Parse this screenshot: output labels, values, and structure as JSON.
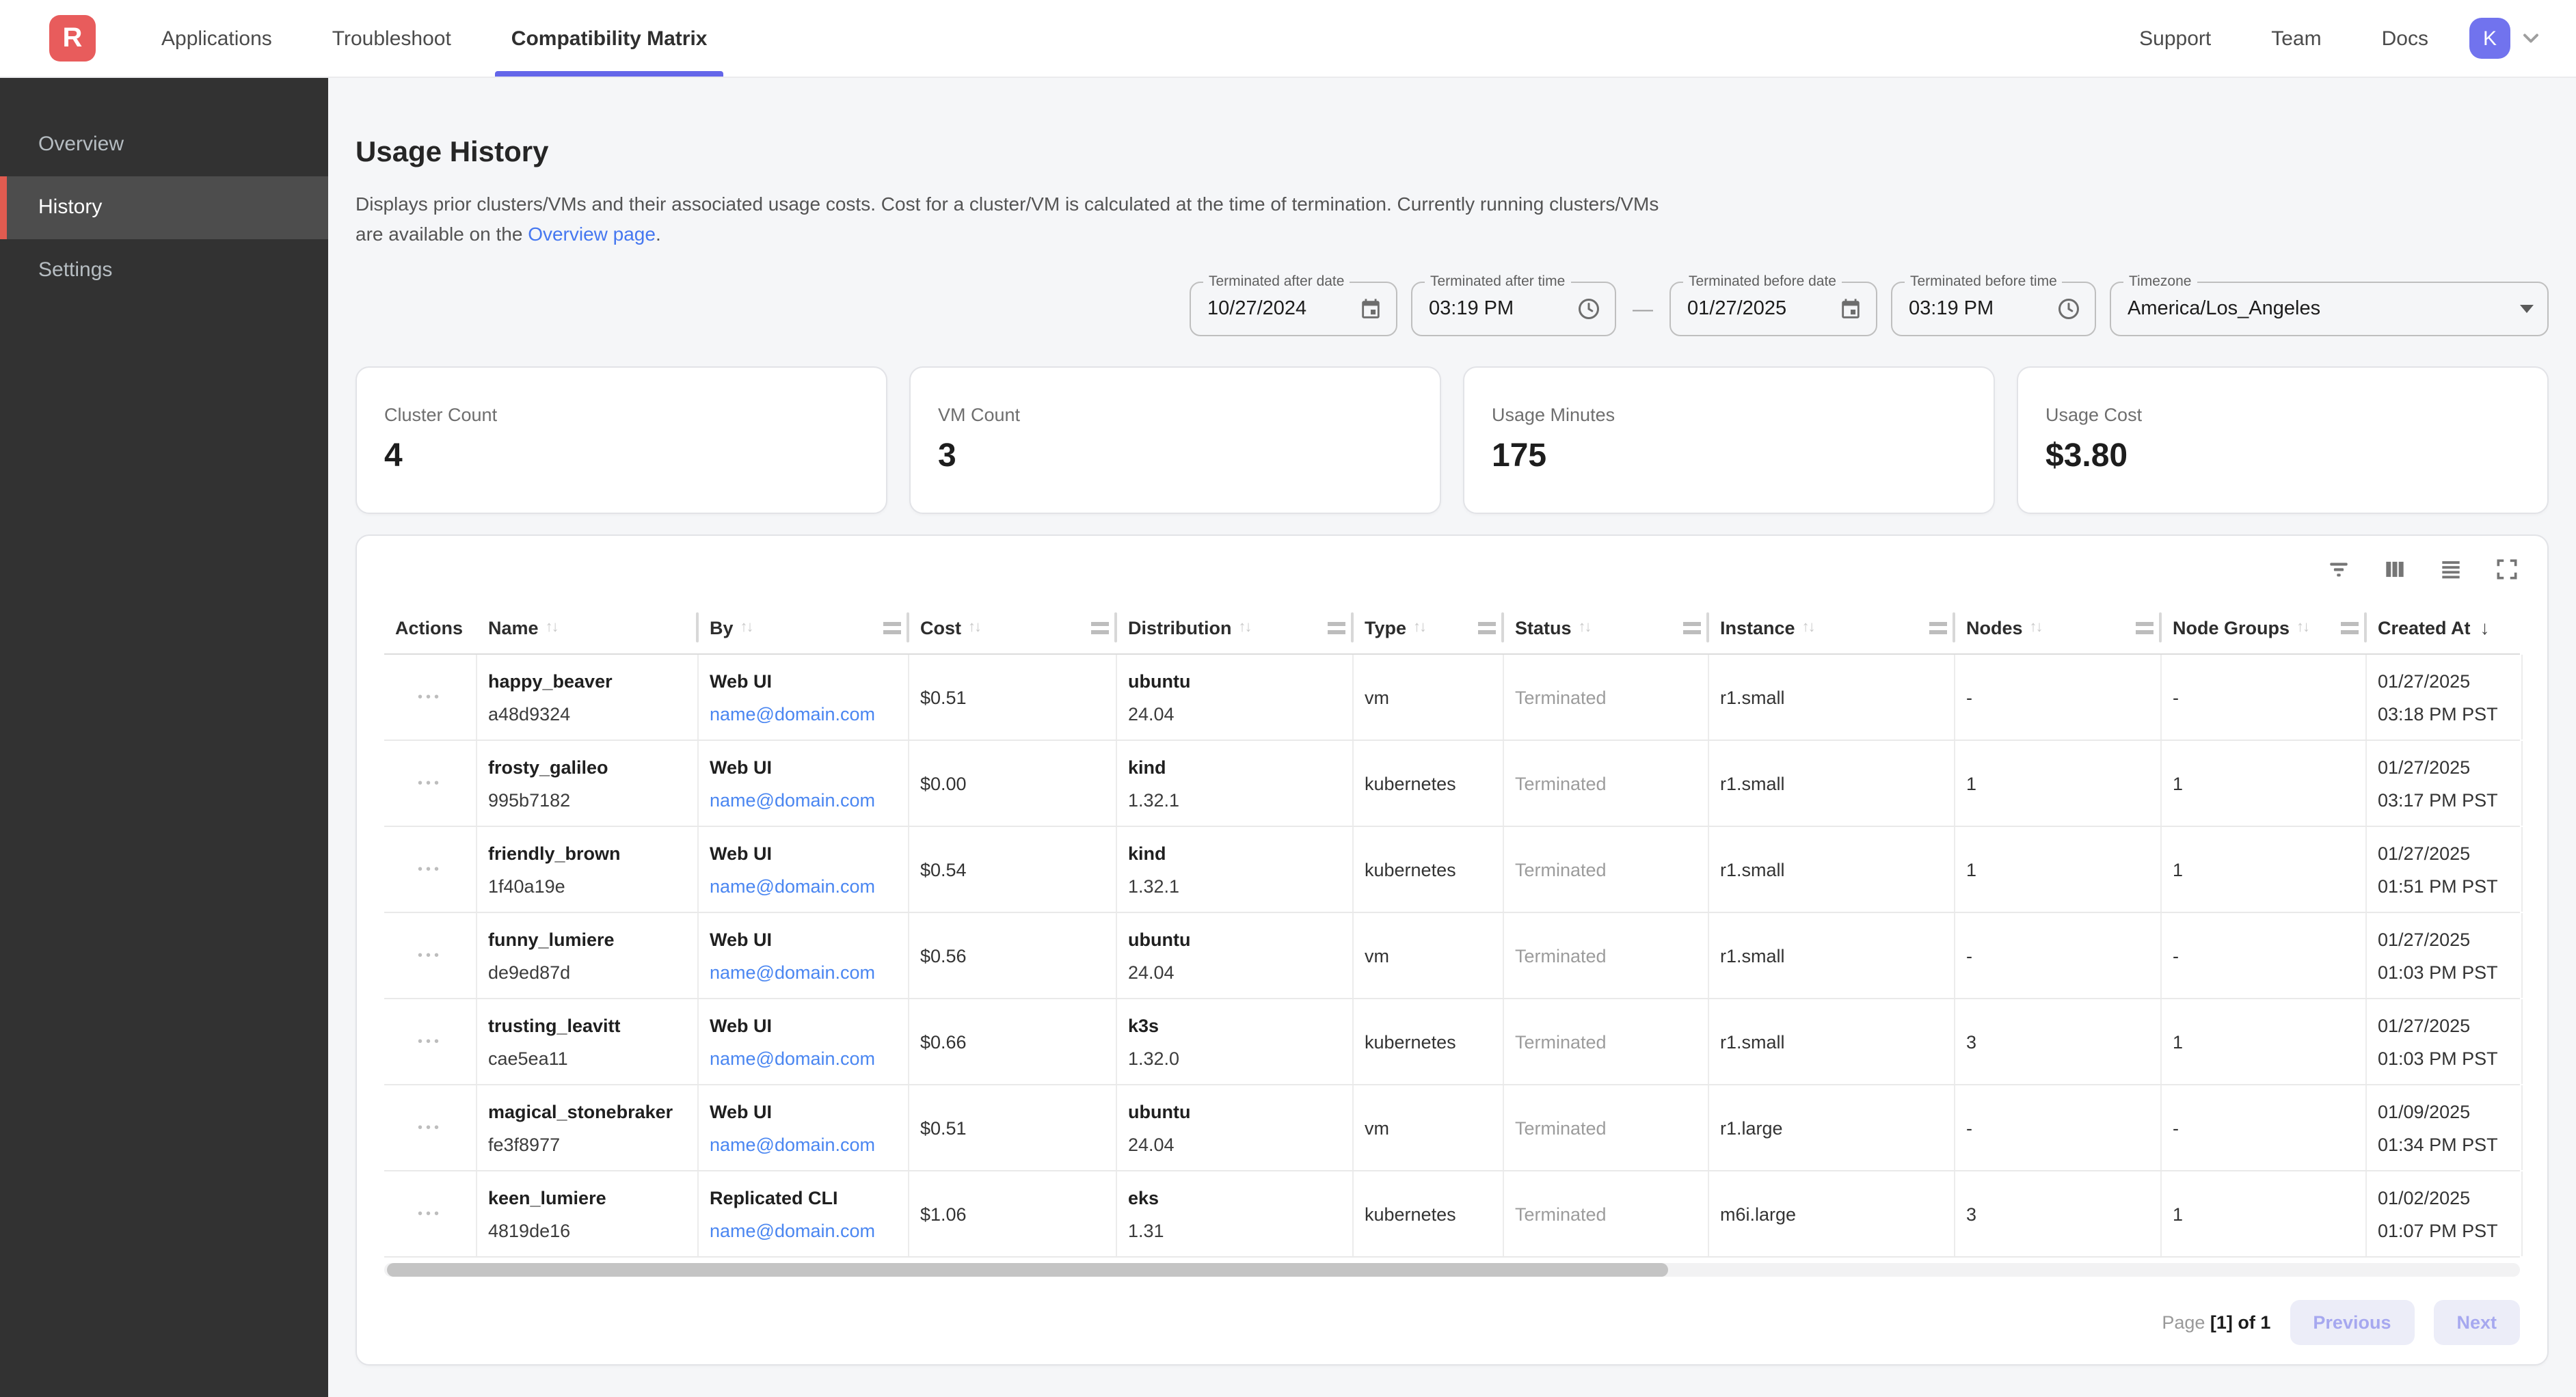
{
  "nav": {
    "logo_letter": "R",
    "tabs": [
      {
        "label": "Applications",
        "active": false
      },
      {
        "label": "Troubleshoot",
        "active": false
      },
      {
        "label": "Compatibility Matrix",
        "active": true
      }
    ],
    "links": [
      "Support",
      "Team",
      "Docs"
    ],
    "avatar_initial": "K"
  },
  "sidebar": {
    "items": [
      {
        "label": "Overview",
        "active": false
      },
      {
        "label": "History",
        "active": true
      },
      {
        "label": "Settings",
        "active": false
      }
    ]
  },
  "page": {
    "title": "Usage History",
    "description_before_link": "Displays prior clusters/VMs and their associated usage costs. Cost for a cluster/VM is calculated at the time of termination. Currently running clusters/VMs are available on the ",
    "link_text": "Overview page",
    "description_after_link": "."
  },
  "filters": {
    "dash": "—",
    "fields": [
      {
        "label": "Terminated after date",
        "value": "10/27/2024",
        "icon": "calendar"
      },
      {
        "label": "Terminated after time",
        "value": "03:19 PM",
        "icon": "clock"
      },
      {
        "label": "Terminated before date",
        "value": "01/27/2025",
        "icon": "calendar"
      },
      {
        "label": "Terminated before time",
        "value": "03:19 PM",
        "icon": "clock"
      },
      {
        "label": "Timezone",
        "value": "America/Los_Angeles",
        "icon": "caret"
      }
    ]
  },
  "stats": [
    {
      "label": "Cluster Count",
      "value": "4"
    },
    {
      "label": "VM Count",
      "value": "3"
    },
    {
      "label": "Usage Minutes",
      "value": "175"
    },
    {
      "label": "Usage Cost",
      "value": "$3.80"
    }
  ],
  "table": {
    "toolbar_icons": [
      "filter",
      "columns",
      "density",
      "fullscreen"
    ],
    "actions_glyph": "•••",
    "columns": [
      {
        "key": "actions",
        "label": "Actions",
        "sort": "none",
        "menu": false,
        "separator": false
      },
      {
        "key": "name",
        "label": "Name",
        "sort": "both",
        "menu": false,
        "separator": true
      },
      {
        "key": "by",
        "label": "By",
        "sort": "both",
        "menu": true,
        "separator": true
      },
      {
        "key": "cost",
        "label": "Cost",
        "sort": "both",
        "menu": true,
        "separator": true
      },
      {
        "key": "distribution",
        "label": "Distribution",
        "sort": "both",
        "menu": true,
        "separator": true
      },
      {
        "key": "type",
        "label": "Type",
        "sort": "both",
        "menu": true,
        "separator": true
      },
      {
        "key": "status",
        "label": "Status",
        "sort": "both",
        "menu": true,
        "separator": true
      },
      {
        "key": "instance",
        "label": "Instance",
        "sort": "both",
        "menu": true,
        "separator": true
      },
      {
        "key": "nodes",
        "label": "Nodes",
        "sort": "both",
        "menu": true,
        "separator": true
      },
      {
        "key": "node_groups",
        "label": "Node Groups",
        "sort": "both",
        "menu": true,
        "separator": true
      },
      {
        "key": "created_at",
        "label": "Created At",
        "sort": "desc",
        "menu": false,
        "separator": false
      }
    ],
    "rows": [
      {
        "name": [
          "happy_beaver",
          "a48d9324"
        ],
        "by": [
          "Web UI",
          "name@domain.com"
        ],
        "cost": "$0.51",
        "distribution": [
          "ubuntu",
          "24.04"
        ],
        "type": "vm",
        "status": "Terminated",
        "instance": "r1.small",
        "nodes": "-",
        "node_groups": "-",
        "created_at": [
          "01/27/2025",
          "03:18 PM PST"
        ]
      },
      {
        "name": [
          "frosty_galileo",
          "995b7182"
        ],
        "by": [
          "Web UI",
          "name@domain.com"
        ],
        "cost": "$0.00",
        "distribution": [
          "kind",
          "1.32.1"
        ],
        "type": "kubernetes",
        "status": "Terminated",
        "instance": "r1.small",
        "nodes": "1",
        "node_groups": "1",
        "created_at": [
          "01/27/2025",
          "03:17 PM PST"
        ]
      },
      {
        "name": [
          "friendly_brown",
          "1f40a19e"
        ],
        "by": [
          "Web UI",
          "name@domain.com"
        ],
        "cost": "$0.54",
        "distribution": [
          "kind",
          "1.32.1"
        ],
        "type": "kubernetes",
        "status": "Terminated",
        "instance": "r1.small",
        "nodes": "1",
        "node_groups": "1",
        "created_at": [
          "01/27/2025",
          "01:51 PM PST"
        ]
      },
      {
        "name": [
          "funny_lumiere",
          "de9ed87d"
        ],
        "by": [
          "Web UI",
          "name@domain.com"
        ],
        "cost": "$0.56",
        "distribution": [
          "ubuntu",
          "24.04"
        ],
        "type": "vm",
        "status": "Terminated",
        "instance": "r1.small",
        "nodes": "-",
        "node_groups": "-",
        "created_at": [
          "01/27/2025",
          "01:03 PM PST"
        ]
      },
      {
        "name": [
          "trusting_leavitt",
          "cae5ea11"
        ],
        "by": [
          "Web UI",
          "name@domain.com"
        ],
        "cost": "$0.66",
        "distribution": [
          "k3s",
          "1.32.0"
        ],
        "type": "kubernetes",
        "status": "Terminated",
        "instance": "r1.small",
        "nodes": "3",
        "node_groups": "1",
        "created_at": [
          "01/27/2025",
          "01:03 PM PST"
        ]
      },
      {
        "name": [
          "magical_stonebraker",
          "fe3f8977"
        ],
        "by": [
          "Web UI",
          "name@domain.com"
        ],
        "cost": "$0.51",
        "distribution": [
          "ubuntu",
          "24.04"
        ],
        "type": "vm",
        "status": "Terminated",
        "instance": "r1.large",
        "nodes": "-",
        "node_groups": "-",
        "created_at": [
          "01/09/2025",
          "01:34 PM PST"
        ]
      },
      {
        "name": [
          "keen_lumiere",
          "4819de16"
        ],
        "by": [
          "Replicated CLI",
          "name@domain.com"
        ],
        "cost": "$1.06",
        "distribution": [
          "eks",
          "1.31"
        ],
        "type": "kubernetes",
        "status": "Terminated",
        "instance": "m6i.large",
        "nodes": "3",
        "node_groups": "1",
        "created_at": [
          "01/02/2025",
          "01:07 PM PST"
        ]
      }
    ]
  },
  "pagination": {
    "page_label": "Page ",
    "page_value": "[1] of 1",
    "previous_label": "Previous",
    "next_label": "Next"
  },
  "colors": {
    "brand_red": "#e85c5c",
    "active_tab_underline": "#6466e9",
    "avatar_indigo": "#7173ee",
    "link_blue": "#4a86f1",
    "sidebar_active_accent": "#e15b50",
    "pagination_button_bg": "#ecedf8",
    "pagination_button_text": "#a6a8ef"
  }
}
